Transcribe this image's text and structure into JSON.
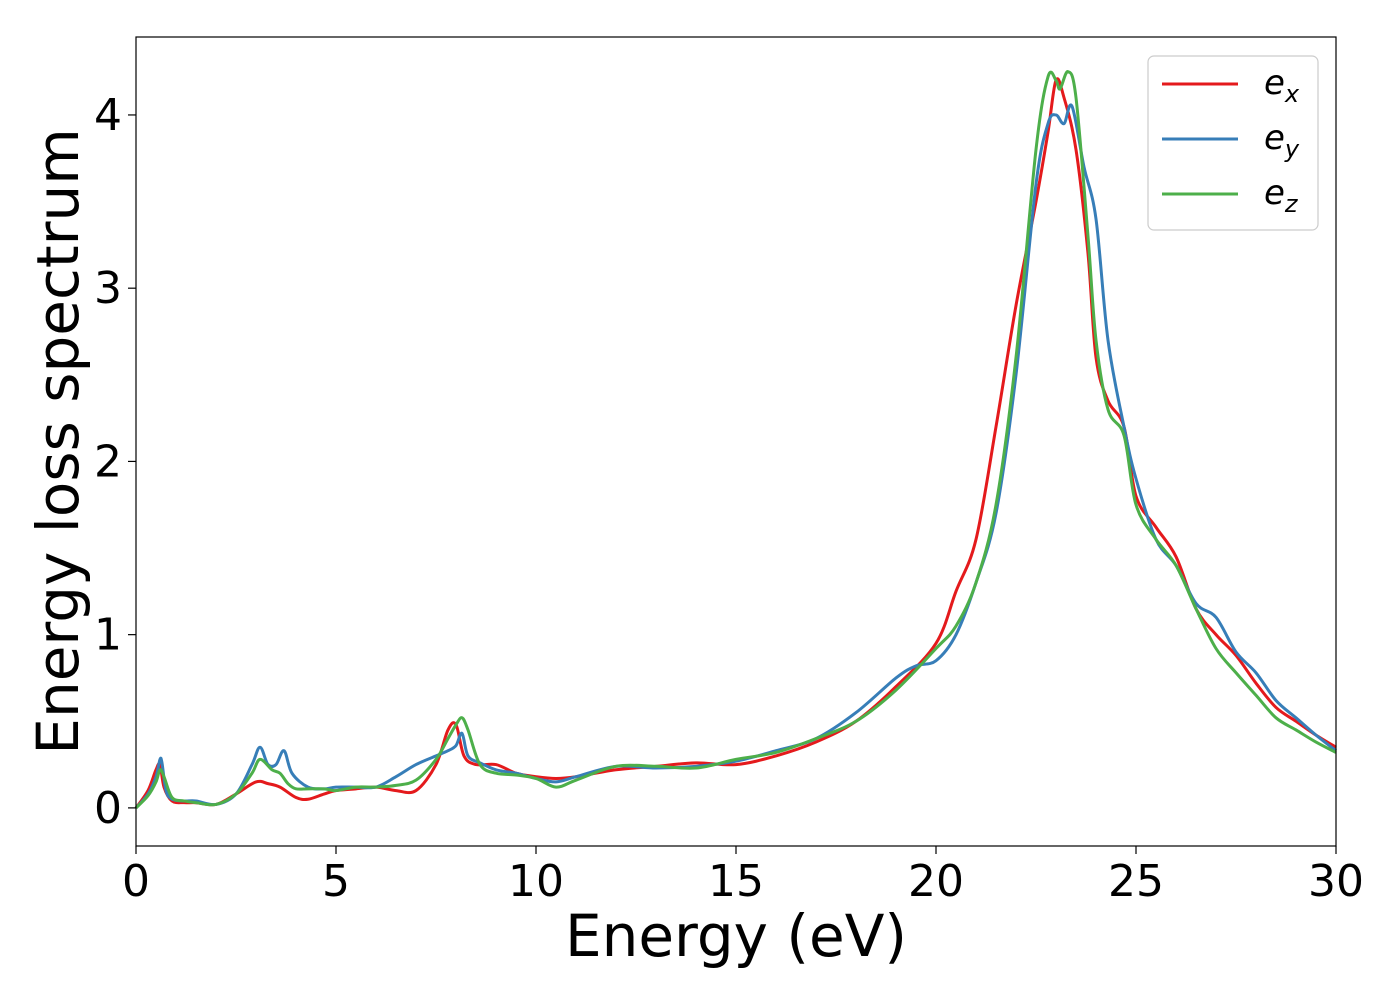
{
  "chart_data": {
    "type": "line",
    "xlabel": "Energy (eV)",
    "ylabel": "Energy loss spectrum",
    "xlim": [
      0,
      30
    ],
    "ylim": [
      -0.22,
      4.45
    ],
    "xticks": [
      0,
      5,
      10,
      15,
      20,
      25,
      30
    ],
    "xtick_labels": [
      "0",
      "5",
      "10",
      "15",
      "20",
      "25",
      "30"
    ],
    "yticks": [
      0,
      1,
      2,
      3,
      4
    ],
    "ytick_labels": [
      "0",
      "1",
      "2",
      "3",
      "4"
    ],
    "grid": false,
    "legend_position": "top-right",
    "series": [
      {
        "name": "e_x",
        "label_base": "e",
        "label_sub": "x",
        "color": "#e41a1c",
        "x": [
          0,
          0.3,
          0.5,
          0.6,
          0.7,
          0.9,
          1.2,
          1.5,
          2.0,
          2.5,
          3.0,
          3.3,
          3.6,
          4.0,
          4.3,
          4.7,
          5.0,
          5.5,
          6.0,
          6.5,
          7.0,
          7.5,
          7.8,
          8.0,
          8.2,
          8.5,
          9.0,
          9.5,
          10.0,
          10.5,
          11.0,
          12.0,
          13.0,
          14.0,
          15.0,
          16.0,
          17.0,
          18.0,
          19.0,
          20.0,
          20.5,
          21.0,
          21.5,
          22.0,
          22.5,
          22.8,
          23.0,
          23.2,
          23.5,
          23.8,
          24.0,
          24.3,
          24.7,
          25.0,
          25.5,
          26.0,
          26.5,
          27.0,
          27.5,
          28.0,
          28.5,
          29.0,
          29.5,
          30.0
        ],
        "y": [
          0,
          0.1,
          0.22,
          0.25,
          0.12,
          0.04,
          0.03,
          0.03,
          0.02,
          0.08,
          0.15,
          0.14,
          0.12,
          0.06,
          0.05,
          0.08,
          0.1,
          0.11,
          0.12,
          0.1,
          0.1,
          0.25,
          0.45,
          0.48,
          0.3,
          0.25,
          0.25,
          0.2,
          0.18,
          0.17,
          0.18,
          0.22,
          0.24,
          0.26,
          0.25,
          0.3,
          0.38,
          0.5,
          0.7,
          0.95,
          1.25,
          1.55,
          2.2,
          2.9,
          3.5,
          3.9,
          4.2,
          4.1,
          3.8,
          3.2,
          2.6,
          2.35,
          2.2,
          1.8,
          1.62,
          1.45,
          1.15,
          1.0,
          0.88,
          0.72,
          0.58,
          0.5,
          0.42,
          0.35
        ]
      },
      {
        "name": "e_y",
        "label_base": "e",
        "label_sub": "y",
        "color": "#377eb8",
        "x": [
          0,
          0.3,
          0.5,
          0.6,
          0.65,
          0.75,
          0.9,
          1.2,
          1.5,
          2.0,
          2.5,
          2.9,
          3.1,
          3.3,
          3.5,
          3.7,
          3.9,
          4.3,
          4.7,
          5.0,
          5.5,
          6.0,
          6.5,
          7.0,
          7.5,
          7.8,
          8.0,
          8.15,
          8.3,
          8.6,
          9.0,
          9.5,
          10.0,
          10.5,
          11.0,
          12.0,
          13.0,
          14.0,
          15.0,
          16.0,
          17.0,
          18.0,
          19.0,
          19.5,
          20.0,
          20.5,
          21.0,
          21.5,
          22.0,
          22.5,
          22.8,
          23.0,
          23.2,
          23.4,
          23.7,
          24.0,
          24.3,
          24.7,
          25.0,
          25.5,
          26.0,
          26.5,
          27.0,
          27.5,
          28.0,
          28.5,
          29.0,
          29.5,
          30.0
        ],
        "y": [
          0,
          0.08,
          0.18,
          0.28,
          0.26,
          0.1,
          0.05,
          0.04,
          0.04,
          0.02,
          0.08,
          0.25,
          0.35,
          0.25,
          0.25,
          0.33,
          0.2,
          0.12,
          0.11,
          0.12,
          0.12,
          0.12,
          0.18,
          0.25,
          0.3,
          0.33,
          0.36,
          0.43,
          0.3,
          0.26,
          0.22,
          0.2,
          0.17,
          0.15,
          0.18,
          0.24,
          0.23,
          0.24,
          0.27,
          0.33,
          0.4,
          0.55,
          0.75,
          0.82,
          0.85,
          1.0,
          1.3,
          1.7,
          2.5,
          3.6,
          3.95,
          4.0,
          3.95,
          4.05,
          3.7,
          3.4,
          2.7,
          2.2,
          1.9,
          1.55,
          1.4,
          1.18,
          1.1,
          0.9,
          0.78,
          0.62,
          0.52,
          0.42,
          0.33
        ]
      },
      {
        "name": "e_z",
        "label_base": "e",
        "label_sub": "z",
        "color": "#4daf4a",
        "x": [
          0,
          0.3,
          0.5,
          0.6,
          0.7,
          0.9,
          1.2,
          1.5,
          2.0,
          2.5,
          2.9,
          3.1,
          3.4,
          3.6,
          3.8,
          4.0,
          4.3,
          4.7,
          5.0,
          5.5,
          6.0,
          6.5,
          7.0,
          7.5,
          7.8,
          8.0,
          8.15,
          8.3,
          8.6,
          9.0,
          9.5,
          10.0,
          10.5,
          11.0,
          12.0,
          13.0,
          14.0,
          15.0,
          16.0,
          17.0,
          18.0,
          19.0,
          20.0,
          20.5,
          21.0,
          21.5,
          22.0,
          22.5,
          22.8,
          23.0,
          23.1,
          23.3,
          23.5,
          23.8,
          24.0,
          24.3,
          24.7,
          25.0,
          25.5,
          26.0,
          26.5,
          27.0,
          27.5,
          28.0,
          28.5,
          29.0,
          29.5,
          30.0
        ],
        "y": [
          0,
          0.07,
          0.15,
          0.22,
          0.18,
          0.06,
          0.04,
          0.03,
          0.02,
          0.08,
          0.2,
          0.28,
          0.22,
          0.2,
          0.14,
          0.11,
          0.11,
          0.11,
          0.1,
          0.12,
          0.12,
          0.13,
          0.16,
          0.28,
          0.4,
          0.48,
          0.52,
          0.45,
          0.25,
          0.2,
          0.19,
          0.17,
          0.12,
          0.16,
          0.24,
          0.24,
          0.23,
          0.28,
          0.32,
          0.4,
          0.5,
          0.68,
          0.92,
          1.05,
          1.3,
          1.75,
          2.6,
          3.8,
          4.22,
          4.2,
          4.15,
          4.25,
          4.1,
          3.3,
          2.7,
          2.3,
          2.15,
          1.75,
          1.55,
          1.4,
          1.15,
          0.92,
          0.78,
          0.65,
          0.52,
          0.45,
          0.38,
          0.32
        ]
      }
    ]
  }
}
